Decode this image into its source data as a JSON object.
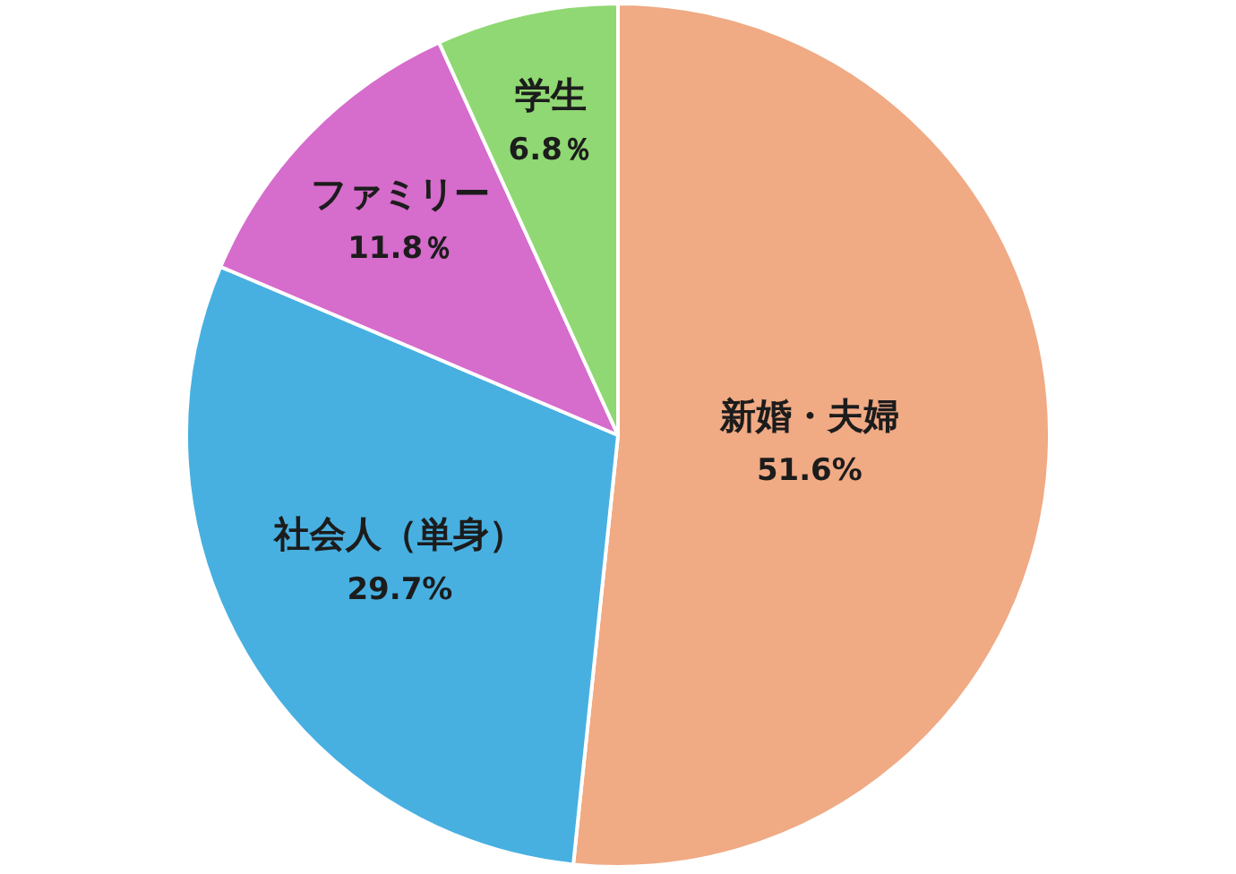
{
  "chart_data": {
    "type": "pie",
    "categories": [
      "新婚・夫婦",
      "社会人（単身）",
      "ファミリー",
      "学生"
    ],
    "values": [
      51.6,
      29.7,
      11.8,
      6.8
    ],
    "colors": [
      "#f0aa84",
      "#47b0e1",
      "#d66ccc",
      "#90d873"
    ],
    "value_labels": [
      "51.6%",
      "29.7%",
      "11.8％",
      "6.8％"
    ]
  }
}
